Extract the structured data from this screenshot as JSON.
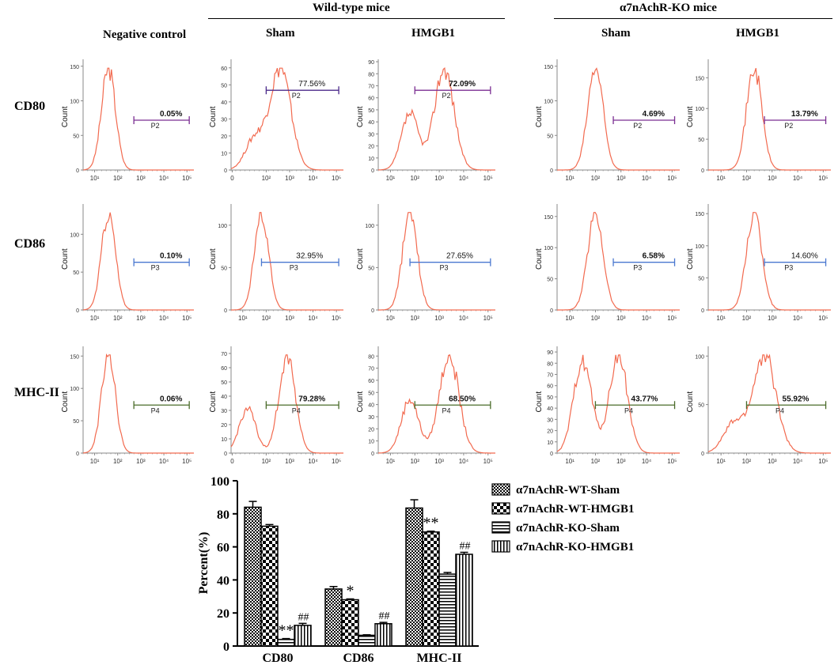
{
  "headers": {
    "group_wt": "Wild-type mice",
    "group_ko": "α7nAchR-KO mice",
    "col_negative": "Negative control",
    "col_wt_sham": "Sham",
    "col_wt_hmgb1": "HMGB1",
    "col_ko_sham": "Sham",
    "col_ko_hmgb1": "HMGB1"
  },
  "rows": [
    "CD80",
    "CD86",
    "MHC-II"
  ],
  "histogram_axis": {
    "ylabel": "Count",
    "xticks": [
      "10¹",
      "10²",
      "10³",
      "10⁴",
      "10⁵"
    ],
    "xticks_with_zero": [
      "0",
      "10²",
      "10³",
      "10⁴",
      "10⁵"
    ]
  },
  "chart_data": [
    {
      "type": "histogram",
      "title": "Flow cytometry histograms",
      "panels": [
        {
          "row": "CD80",
          "col": "Negative control",
          "gate": "P2",
          "percent": "0.05%",
          "yticks": [
            0,
            50,
            100,
            150
          ],
          "ymax": 160,
          "peak_log": 1.6,
          "shape": "single",
          "gate_color": "#7b2e92",
          "pct_bold": true,
          "zero": false
        },
        {
          "row": "CD80",
          "col": "WT Sham",
          "gate": "P2",
          "percent": "77.56%",
          "yticks": [
            0,
            10,
            20,
            30,
            40,
            50,
            60
          ],
          "ymax": 65,
          "peak_log": 2.6,
          "shape": "broad",
          "gate_color": "#4b2a8a",
          "pct_bold": false,
          "zero": true
        },
        {
          "row": "CD80",
          "col": "WT HMGB1",
          "gate": "P2",
          "percent": "72.09%",
          "yticks": [
            0,
            10,
            20,
            30,
            40,
            50,
            60,
            70,
            80,
            90
          ],
          "ymax": 92,
          "peak_log": 3.2,
          "shape": "bimodal",
          "gate_color": "#7b2e92",
          "pct_bold": true,
          "zero": false
        },
        {
          "row": "CD80",
          "col": "KO Sham",
          "gate": "P2",
          "percent": "4.69%",
          "yticks": [
            0,
            50,
            100,
            150
          ],
          "ymax": 160,
          "peak_log": 2.0,
          "shape": "single",
          "gate_color": "#7b2e92",
          "pct_bold": true,
          "zero": false
        },
        {
          "row": "CD80",
          "col": "KO HMGB1",
          "gate": "P2",
          "percent": "13.79%",
          "yticks": [
            0,
            50,
            100,
            150
          ],
          "ymax": 180,
          "peak_log": 2.3,
          "shape": "single",
          "gate_color": "#7b2e92",
          "pct_bold": true,
          "zero": false
        },
        {
          "row": "CD86",
          "col": "Negative control",
          "gate": "P3",
          "percent": "0.10%",
          "yticks": [
            0,
            50,
            100
          ],
          "ymax": 140,
          "peak_log": 1.6,
          "shape": "single",
          "gate_color": "#4a78d0",
          "pct_bold": true,
          "zero": false
        },
        {
          "row": "CD86",
          "col": "WT Sham",
          "gate": "P3",
          "percent": "32.95%",
          "yticks": [
            0,
            50,
            100
          ],
          "ymax": 125,
          "peak_log": 1.8,
          "shape": "single",
          "gate_color": "#4a78d0",
          "pct_bold": false,
          "zero": false
        },
        {
          "row": "CD86",
          "col": "WT HMGB1",
          "gate": "P3",
          "percent": "27.65%",
          "yticks": [
            0,
            50,
            100
          ],
          "ymax": 125,
          "peak_log": 1.8,
          "shape": "single",
          "gate_color": "#4a78d0",
          "pct_bold": false,
          "zero": false
        },
        {
          "row": "CD86",
          "col": "KO Sham",
          "gate": "P3",
          "percent": "6.58%",
          "yticks": [
            0,
            50,
            100,
            150
          ],
          "ymax": 170,
          "peak_log": 2.0,
          "shape": "single",
          "gate_color": "#4a78d0",
          "pct_bold": true,
          "zero": false
        },
        {
          "row": "CD86",
          "col": "KO HMGB1",
          "gate": "P3",
          "percent": "14.60%",
          "yticks": [
            0,
            50,
            100,
            150
          ],
          "ymax": 165,
          "peak_log": 2.3,
          "shape": "single",
          "gate_color": "#4a78d0",
          "pct_bold": false,
          "zero": false
        },
        {
          "row": "MHC-II",
          "col": "Negative control",
          "gate": "P4",
          "percent": "0.06%",
          "yticks": [
            0,
            50,
            100,
            150
          ],
          "ymax": 165,
          "peak_log": 1.6,
          "shape": "single",
          "gate_color": "#4a6b2a",
          "pct_bold": true,
          "zero": false
        },
        {
          "row": "MHC-II",
          "col": "WT Sham",
          "gate": "P4",
          "percent": "79.28%",
          "yticks": [
            0,
            10,
            20,
            30,
            40,
            50,
            60,
            70
          ],
          "ymax": 75,
          "peak_log": 2.9,
          "shape": "bimodal_low",
          "gate_color": "#4a6b2a",
          "pct_bold": true,
          "zero": true
        },
        {
          "row": "MHC-II",
          "col": "WT HMGB1",
          "gate": "P4",
          "percent": "68.50%",
          "yticks": [
            0,
            10,
            20,
            30,
            40,
            50,
            60,
            70,
            80
          ],
          "ymax": 88,
          "peak_log": 3.4,
          "shape": "bimodal",
          "gate_color": "#4a6b2a",
          "pct_bold": true,
          "zero": false
        },
        {
          "row": "MHC-II",
          "col": "KO Sham",
          "gate": "P4",
          "percent": "43.77%",
          "yticks": [
            0,
            10,
            20,
            30,
            40,
            50,
            60,
            70,
            80,
            90
          ],
          "ymax": 95,
          "peak_log": 2.9,
          "shape": "bimodal_eq",
          "gate_color": "#4a6b2a",
          "pct_bold": true,
          "zero": false
        },
        {
          "row": "MHC-II",
          "col": "KO HMGB1",
          "gate": "P4",
          "percent": "55.92%",
          "yticks": [
            0,
            50,
            100
          ],
          "ymax": 110,
          "peak_log": 2.7,
          "shape": "broad",
          "gate_color": "#4a6b2a",
          "pct_bold": true,
          "zero": false
        }
      ]
    },
    {
      "type": "bar",
      "title": "",
      "ylabel": "Percent(%)",
      "xlabel": "",
      "ylim": [
        0,
        100
      ],
      "yticks": [
        0,
        20,
        40,
        60,
        80,
        100
      ],
      "categories": [
        "CD80",
        "CD86",
        "MHC-II"
      ],
      "series": [
        {
          "name": "α7nAchR-WT-Sham",
          "values": [
            84.0,
            34.5,
            83.5
          ],
          "errors": [
            3.5,
            1.5,
            5.0
          ],
          "pattern": "checker_small"
        },
        {
          "name": "α7nAchR-WT-HMGB1",
          "values": [
            72.5,
            28.0,
            69.0
          ],
          "errors": [
            1.0,
            0.5,
            0.5
          ],
          "pattern": "checker_large"
        },
        {
          "name": "α7nAchR-KO-Sham",
          "values": [
            4.0,
            6.5,
            43.5
          ],
          "errors": [
            0.5,
            0.3,
            1.0
          ],
          "pattern": "horizontal"
        },
        {
          "name": "α7nAchR-KO-HMGB1",
          "values": [
            12.5,
            13.5,
            55.5
          ],
          "errors": [
            1.2,
            0.8,
            1.2
          ],
          "pattern": "vertical"
        }
      ],
      "annotations": [
        {
          "category": "CD80",
          "series": "α7nAchR-KO-Sham",
          "text": "**"
        },
        {
          "category": "CD80",
          "series": "α7nAchR-KO-HMGB1",
          "text": "##"
        },
        {
          "category": "CD86",
          "series": "α7nAchR-WT-HMGB1",
          "text": "*"
        },
        {
          "category": "CD86",
          "series": "α7nAchR-KO-HMGB1",
          "text": "##"
        },
        {
          "category": "MHC-II",
          "series": "α7nAchR-WT-HMGB1",
          "text": "**"
        },
        {
          "category": "MHC-II",
          "series": "α7nAchR-KO-HMGB1",
          "text": "##"
        }
      ],
      "legend": "right"
    }
  ],
  "colors": {
    "histogram_line": "#f26a4f",
    "axis": "#888888",
    "bar_edge": "#000000"
  }
}
